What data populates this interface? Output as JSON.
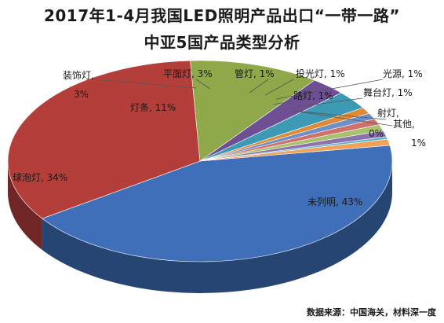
{
  "chart_data": {
    "type": "pie",
    "title": "2017年1-4月我国LED照明产品出口“一带一路”",
    "subtitle": "中亚5国产品类型分析",
    "slices": [
      {
        "label": "未列明",
        "value": 43,
        "text": "未列明, 43%",
        "color": "#3f6fb8"
      },
      {
        "label": "球泡灯",
        "value": 34,
        "text": "球泡灯, 34%",
        "color": "#b43e3a"
      },
      {
        "label": "灯条",
        "value": 11,
        "text": "灯条, 11%",
        "color": "#8ea84a"
      },
      {
        "label": "装饰灯",
        "value": 3,
        "text_line1": "装饰灯,",
        "text_line2": "3%",
        "color": "#6e4f94"
      },
      {
        "label": "平面灯",
        "value": 3,
        "text": "平面灯, 3%",
        "color": "#3d9ab5"
      },
      {
        "label": "管灯",
        "value": 1,
        "text": "管灯, 1%",
        "color": "#e08a35"
      },
      {
        "label": "投光灯",
        "value": 1,
        "text": "投光灯, 1%",
        "color": "#6f8fc8"
      },
      {
        "label": "光源",
        "value": 1,
        "text": "光源, 1%",
        "color": "#d0706b"
      },
      {
        "label": "路灯",
        "value": 1,
        "text": "路灯, 1%",
        "color": "#a6c26e"
      },
      {
        "label": "舞台灯",
        "value": 1,
        "text": "舞台灯, 1%",
        "color": "#8c73ad"
      },
      {
        "label": "射灯",
        "value": 0,
        "text_line1": "射灯,",
        "text_line2": "0%",
        "color": "#5ab4cc"
      },
      {
        "label": "其他",
        "value": 1,
        "text_line1": "其他,",
        "text_line2": "1%",
        "color": "#f0a15a"
      }
    ]
  },
  "source": "数据来源：中国海关，材料深一度"
}
